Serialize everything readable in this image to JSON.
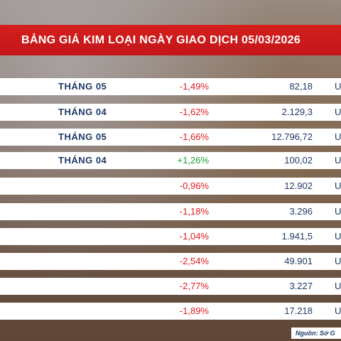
{
  "header": {
    "title": "BẢNG GIÁ KIM LOẠI NGÀY GIAO DỊCH 05/03/2026"
  },
  "rows": [
    {
      "month": "THÁNG 05",
      "change": "-1,49%",
      "trend": "neg",
      "price": "82,18",
      "unit": "US"
    },
    {
      "month": "THÁNG 04",
      "change": "-1,62%",
      "trend": "neg",
      "price": "2.129,3",
      "unit": "US"
    },
    {
      "month": "THÁNG 05",
      "change": "-1,66%",
      "trend": "neg",
      "price": "12.796,72",
      "unit": "US"
    },
    {
      "month": "THÁNG 04",
      "change": "+1,26%",
      "trend": "pos",
      "price": "100,02",
      "unit": "US"
    },
    {
      "month": "",
      "change": "-0,96%",
      "trend": "neg",
      "price": "12.902",
      "unit": "US"
    },
    {
      "month": "",
      "change": "-1,18%",
      "trend": "neg",
      "price": "3.296",
      "unit": "US"
    },
    {
      "month": "",
      "change": "-1,04%",
      "trend": "neg",
      "price": "1.941,5",
      "unit": "US"
    },
    {
      "month": "",
      "change": "-2,54%",
      "trend": "neg",
      "price": "49.901",
      "unit": "US"
    },
    {
      "month": "",
      "change": "-2,77%",
      "trend": "neg",
      "price": "3.227",
      "unit": "US"
    },
    {
      "month": "",
      "change": "-1,89%",
      "trend": "neg",
      "price": "17.218",
      "unit": "US"
    }
  ],
  "source": "Nguồn: Sở G",
  "colors": {
    "header_red": "#c3151a",
    "negative": "#e01b22",
    "positive": "#1f9e3a",
    "navy": "#1f3a66"
  }
}
